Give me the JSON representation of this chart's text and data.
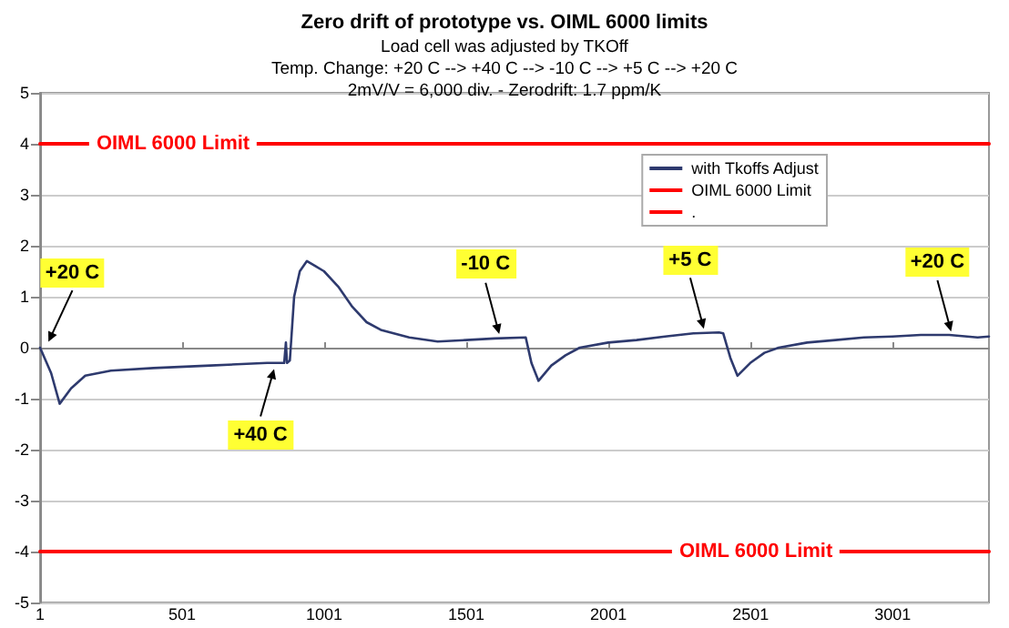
{
  "chart_data": {
    "type": "line",
    "title": "Zero drift of prototype vs. OIML 6000 limits",
    "subtitle": "Load cell was adjusted by TKOff\nTemp. Change: +20 C --> +40 C --> -10 C --> +5 C --> +20 C\n2mV/V = 6,000 div. - Zerodrift: 1.7 ppm/K",
    "xlim": [
      1,
      3340
    ],
    "xticks": [
      1,
      501,
      1001,
      1501,
      2001,
      2501,
      3001
    ],
    "ylim": [
      -5,
      5
    ],
    "yticks": [
      -5,
      -4,
      -3,
      -2,
      -1,
      0,
      1,
      2,
      3,
      4,
      5
    ],
    "grid": "y",
    "legend": "top right",
    "marker": "none",
    "line_style": "solid",
    "series": [
      {
        "name": "with Tkoffs Adjust",
        "color": "#2e3a6e",
        "x": [
          1,
          40,
          70,
          110,
          160,
          250,
          400,
          600,
          800,
          860,
          866,
          870,
          880,
          895,
          915,
          940,
          970,
          1000,
          1050,
          1100,
          1150,
          1200,
          1300,
          1400,
          1500,
          1600,
          1710,
          1730,
          1755,
          1800,
          1850,
          1900,
          2000,
          2100,
          2200,
          2300,
          2390,
          2405,
          2430,
          2455,
          2500,
          2550,
          2600,
          2700,
          2800,
          2900,
          3000,
          3100,
          3200,
          3300,
          3340
        ],
        "values": [
          0.0,
          -0.5,
          -1.1,
          -0.8,
          -0.55,
          -0.45,
          -0.4,
          -0.35,
          -0.3,
          -0.3,
          0.1,
          -0.3,
          -0.25,
          1.0,
          1.5,
          1.7,
          1.6,
          1.5,
          1.2,
          0.8,
          0.5,
          0.35,
          0.2,
          0.12,
          0.15,
          0.18,
          0.2,
          -0.3,
          -0.65,
          -0.35,
          -0.15,
          0.0,
          0.1,
          0.15,
          0.22,
          0.28,
          0.3,
          0.28,
          -0.2,
          -0.55,
          -0.3,
          -0.1,
          0.0,
          0.1,
          0.15,
          0.2,
          0.22,
          0.25,
          0.25,
          0.2,
          0.22
        ]
      },
      {
        "name": "OIML 6000 Limit",
        "color": "#ff0000",
        "x": [
          1,
          3340
        ],
        "values": [
          4,
          4
        ]
      },
      {
        "name": ".",
        "color": "#ff0000",
        "x": [
          1,
          3340
        ],
        "values": [
          -4,
          -4
        ]
      }
    ],
    "annotations": [
      {
        "text": "+20 C",
        "x": 25,
        "y": 0.05
      },
      {
        "text": "+40 C",
        "x": 828,
        "y": -0.35
      },
      {
        "text": "-10 C",
        "x": 1620,
        "y": 0.2
      },
      {
        "text": "+5 C",
        "x": 2340,
        "y": 0.3
      },
      {
        "text": "+20 C",
        "x": 3210,
        "y": 0.25
      },
      {
        "text": "OIML 6000 Limit",
        "x": 469,
        "y": 4
      },
      {
        "text": "OIML 6000 Limit",
        "x": 2520,
        "y": -4
      }
    ]
  }
}
